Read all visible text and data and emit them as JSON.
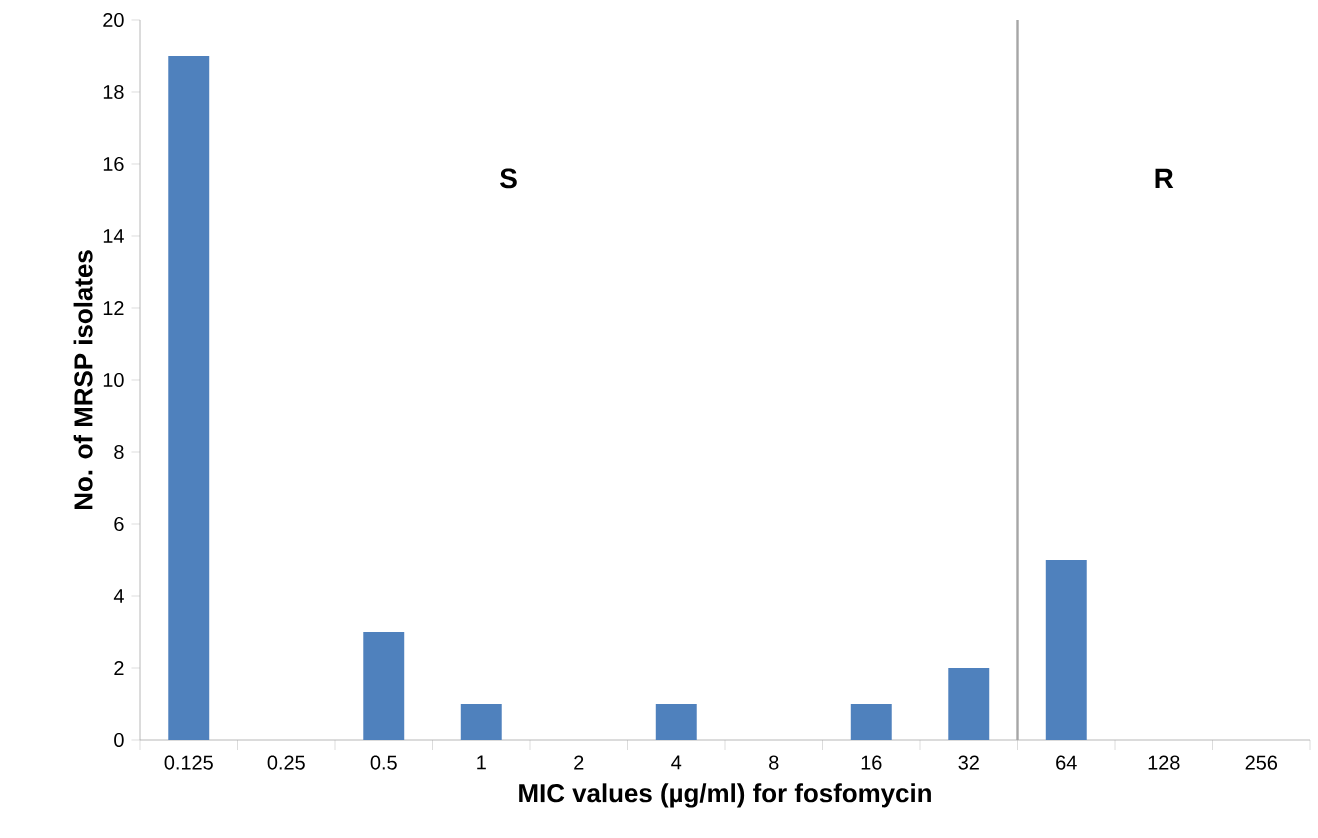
{
  "chart_data": {
    "type": "bar",
    "xlabel": "MIC values (µg/ml) for fosfomycin",
    "ylabel": "No. of MRSP isolates",
    "categories": [
      "0.125",
      "0.25",
      "0.5",
      "1",
      "2",
      "4",
      "8",
      "16",
      "32",
      "64",
      "128",
      "256"
    ],
    "values": [
      19,
      0,
      3,
      1,
      0,
      1,
      0,
      1,
      2,
      5,
      0,
      0
    ],
    "color": "#4f81bd",
    "ylim": [
      0,
      20
    ],
    "yticks": [
      0,
      2,
      4,
      6,
      8,
      10,
      12,
      14,
      16,
      18,
      20
    ],
    "annotations": [
      "S",
      "R"
    ],
    "grid": false
  }
}
